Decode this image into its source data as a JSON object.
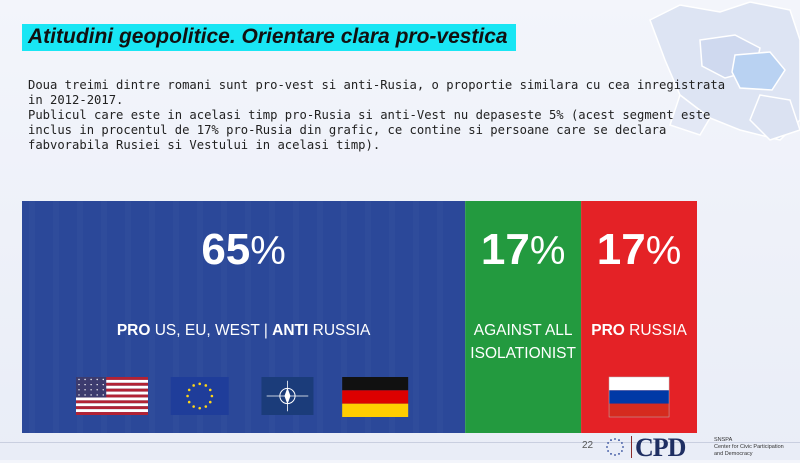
{
  "slide": {
    "title": "Atitudini geopolitice. Orientare clara pro-vestica",
    "paragraphs": [
      "Doua treimi dintre romani sunt pro-vest si anti-Rusia, o proportie similara cu cea inregistrata in 2012-2017.",
      "Publicul care este in acelasi timp pro-Rusia si anti-Vest nu depaseste 5% (acest segment este inclus in procentul de 17% pro-Rusia din grafic, ce contine si persoane care se declara fabvorabila Rusiei si Vestului in acelasi timp)."
    ],
    "page_number": "22"
  },
  "logo": {
    "name": "CPD",
    "org_line1": "SNSPA",
    "org_line2": "Center for Civic Participation",
    "org_line3": "and Democracy"
  },
  "chart_data": {
    "type": "bar",
    "orientation": "stacked-horizontal",
    "segments": [
      {
        "value": 65,
        "label": "65%",
        "caption_bold1": "PRO",
        "caption_rest1": " US, EU, WEST  |  ",
        "caption_bold2": "ANTI",
        "caption_rest2": " RUSSIA",
        "color": "#2b4899",
        "flags": [
          "usa-flag-icon",
          "eu-flag-icon",
          "nato-flag-icon",
          "germany-flag-icon"
        ]
      },
      {
        "value": 17,
        "label": "17%",
        "caption_line1": "AGAINST ALL",
        "caption_line2": "ISOLATIONIST",
        "color": "#239a3f",
        "flags": []
      },
      {
        "value": 17,
        "label": "17%",
        "caption_bold1": "PRO",
        "caption_rest1": " RUSSIA",
        "color": "#e42226",
        "flags": [
          "russia-flag-icon"
        ]
      }
    ]
  }
}
